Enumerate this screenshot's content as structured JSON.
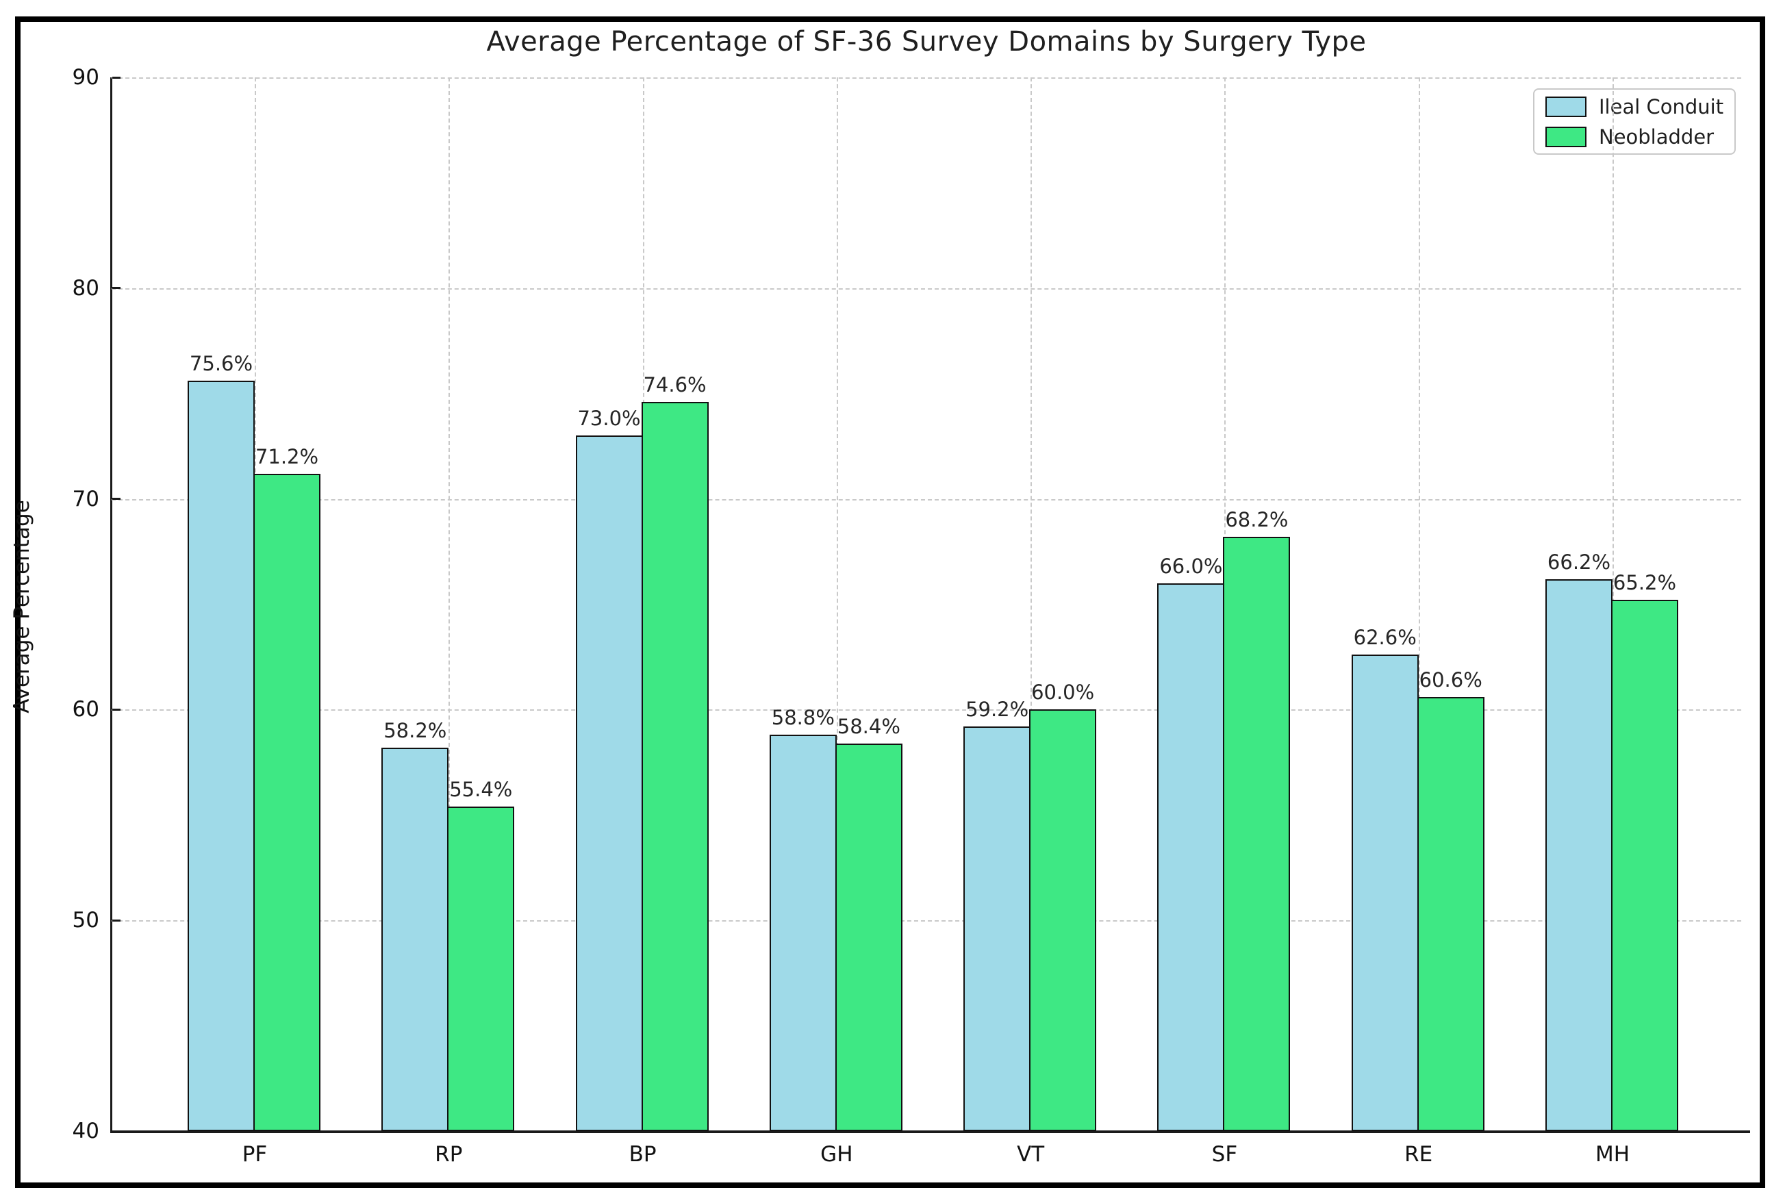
{
  "chart_data": {
    "type": "bar",
    "title": "Average Percentage of SF-36 Survey Domains by Surgery Type",
    "xlabel": "",
    "ylabel": "Average Percentage",
    "categories": [
      "PF",
      "RP",
      "BP",
      "GH",
      "VT",
      "SF",
      "RE",
      "MH"
    ],
    "series": [
      {
        "name": "Ileal Conduit",
        "color": "#9FDAE8",
        "values": [
          75.6,
          58.2,
          73.0,
          58.8,
          59.2,
          66.0,
          62.6,
          66.2
        ],
        "labels": [
          "75.6%",
          "58.2%",
          "73.0%",
          "58.8%",
          "59.2%",
          "66.0%",
          "62.6%",
          "66.2%"
        ]
      },
      {
        "name": "Neobladder",
        "color": "#3EE884",
        "values": [
          71.2,
          55.4,
          74.6,
          58.4,
          60.0,
          68.2,
          60.6,
          65.2
        ],
        "labels": [
          "71.2%",
          "55.4%",
          "74.6%",
          "58.4%",
          "60.0%",
          "68.2%",
          "60.6%",
          "65.2%"
        ]
      }
    ],
    "ylim": [
      40,
      90
    ],
    "yticks": [
      40,
      50,
      60,
      70,
      80,
      90
    ],
    "grid": "dashed, horizontal and vertical",
    "legend_position": "upper right",
    "bar_edge_color": "#111111",
    "background_color": "#ffffff",
    "frame_color": "#000000"
  }
}
